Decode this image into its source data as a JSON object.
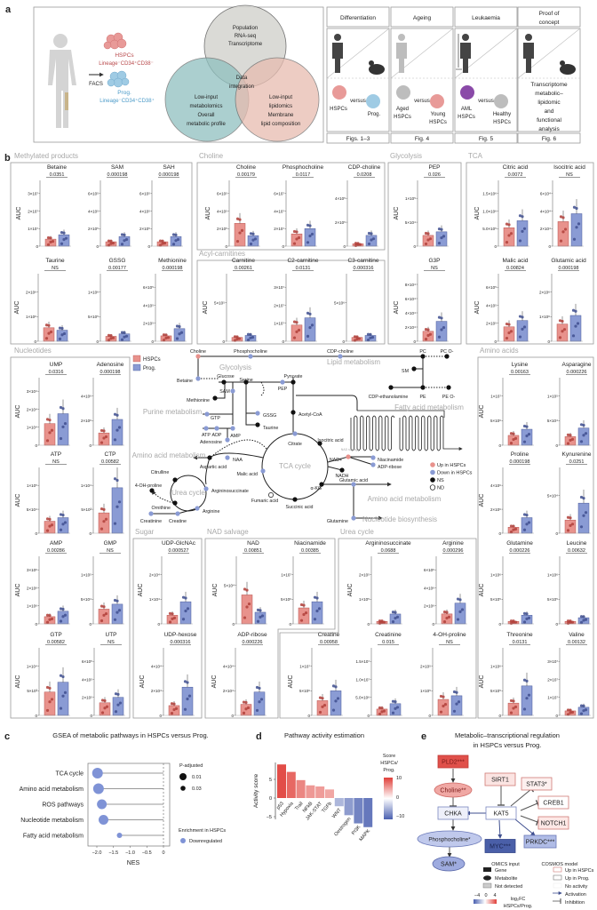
{
  "colors": {
    "hspc": "#e8928c",
    "hspc_dark": "#b0403a",
    "prog": "#8a9bd4",
    "prog_dark": "#3f4f8f",
    "up": "#e06a62",
    "down": "#4a5fa8"
  },
  "panel_a": {
    "label": "a",
    "hspcs": "HSPCs",
    "hspcs_markers": "Lineage⁻CD34⁺CD38⁻",
    "facs": "FACS",
    "prog": "Prog.",
    "prog_markers": "Lineage⁻CD34⁺CD38⁺",
    "venn": {
      "top": [
        "Population",
        "RNA-seq",
        "Transcriptome"
      ],
      "center": [
        "Data",
        "integration"
      ],
      "left": [
        "Low-input",
        "metabolomics",
        "Overall",
        "metabolic profile"
      ],
      "right": [
        "Low-input",
        "lipidomics",
        "Membrane",
        "lipid composition"
      ]
    },
    "columns": [
      {
        "header": [
          "Differentiation"
        ],
        "a": [
          "HSPCs"
        ],
        "versus": "versus",
        "b": [
          "Prog."
        ],
        "footer": "Figs. 1–3"
      },
      {
        "header": [
          "Ageing"
        ],
        "a": [
          "Aged",
          "HSPCs"
        ],
        "versus": "versus",
        "b": [
          "Young",
          "HSPCs"
        ],
        "footer": "Fig. 4"
      },
      {
        "header": [
          "Leukaemia"
        ],
        "a": [
          "AML",
          "HSPCs"
        ],
        "versus": "versus",
        "b": [
          "Healthy",
          "HSPCs"
        ],
        "footer": "Fig. 5"
      },
      {
        "header": [
          "Proof of",
          "concept"
        ],
        "text": [
          "Transcriptome",
          "metabolic–",
          "lipidomic",
          "and",
          "functional",
          "analysis"
        ],
        "footer": "Fig. 6"
      }
    ]
  },
  "panel_b": {
    "label": "b",
    "auc_label": "AUC",
    "legend": {
      "hspcs": "HSPCs",
      "prog": "Prog."
    },
    "groups": [
      "Methylated products",
      "Choline",
      "Acyl-carnitines",
      "Glycolysis",
      "TCA",
      "Nucleotides",
      "Amino acids",
      "Sugar",
      "NAD salvage",
      "Urea cycle"
    ],
    "charts": [
      {
        "title": "Betaine",
        "p": "0.0351",
        "ticks": [
          "0",
          "1×10⁷",
          "2×10⁷",
          "3×10⁷"
        ],
        "hspc": 0.4,
        "prog": 0.65
      },
      {
        "title": "SAM",
        "p": "0.000198",
        "ticks": [
          "0",
          "2×10⁵",
          "4×10⁵",
          "6×10⁵"
        ],
        "hspc": 0.25,
        "prog": 0.55
      },
      {
        "title": "SAH",
        "p": "0.000198",
        "ticks": [
          "0",
          "2×10⁵",
          "4×10⁵",
          "6×10⁵"
        ],
        "hspc": 0.25,
        "prog": 0.55
      },
      {
        "title": "Taurine",
        "p": "NS",
        "ticks": [
          "0",
          "1×10⁶",
          "2×10⁶"
        ],
        "hspc": 0.55,
        "prog": 0.45
      },
      {
        "title": "GSSG",
        "p": "0.00177",
        "ticks": [
          "0",
          "5×10⁵",
          "1×10⁶"
        ],
        "hspc": 0.2,
        "prog": 0.3
      },
      {
        "title": "Methionine",
        "p": "0.000198",
        "ticks": [
          "0",
          "2×10⁵",
          "4×10⁵",
          "6×10⁵"
        ],
        "hspc": 0.3,
        "prog": 0.7
      },
      {
        "title": "Choline",
        "p": "0.00179",
        "ticks": [
          "0",
          "2×10⁵",
          "4×10⁵",
          "6×10⁵"
        ],
        "hspc": 1.3,
        "prog": 0.6
      },
      {
        "title": "Phosphocholine",
        "p": "0.0117",
        "ticks": [
          "0",
          "2×10⁷",
          "4×10⁷",
          "6×10⁷"
        ],
        "hspc": 0.7,
        "prog": 1.0
      },
      {
        "title": "CDP-choline",
        "p": "0.0208",
        "ticks": [
          "0",
          "2×10⁵",
          "4×10⁵"
        ],
        "hspc": 0.1,
        "prog": 0.45
      },
      {
        "title": "Carnitine",
        "p": "0.00261",
        "ticks": [
          "0",
          "5×10⁵"
        ],
        "hspc": 0.1,
        "prog": 0.15
      },
      {
        "title": "C2-carnitine",
        "p": "0.0131",
        "ticks": [
          "0",
          "1×10⁷",
          "2×10⁷",
          "3×10⁷"
        ],
        "hspc": 0.9,
        "prog": 1.3
      },
      {
        "title": "C3-carnitine",
        "p": "0.000316",
        "ticks": [
          "0",
          "5×10⁶"
        ],
        "hspc": 0.1,
        "prog": 0.15
      },
      {
        "title": "PEP",
        "p": "0.026",
        "ticks": [
          "0",
          "5×10⁴",
          "1×10⁵"
        ],
        "hspc": 0.45,
        "prog": 0.6
      },
      {
        "title": "G3P",
        "p": "NS",
        "ticks": [
          "0",
          "2×10⁴",
          "4×10⁴",
          "6×10⁴",
          "8×10⁴"
        ],
        "hspc": 0.7,
        "prog": 1.4
      },
      {
        "title": "Citric acid",
        "p": "0.0072",
        "ticks": [
          "0",
          "5.0×10⁵",
          "1.0×10⁶",
          "1.5×10⁶"
        ],
        "hspc": 1.05,
        "prog": 1.45
      },
      {
        "title": "Isocitric acid",
        "p": "NS",
        "ticks": [
          "0",
          "2×10⁴",
          "4×10⁴",
          "6×10⁴"
        ],
        "hspc": 1.4,
        "prog": 1.85
      },
      {
        "title": "Malic acid",
        "p": "0.00824",
        "ticks": [
          "0",
          "2×10⁵",
          "4×10⁵",
          "6×10⁵"
        ],
        "hspc": 0.8,
        "prog": 1.15
      },
      {
        "title": "Glutamic acid",
        "p": "0.000198",
        "ticks": [
          "0",
          "1×10⁶",
          "2×10⁶"
        ],
        "hspc": 0.7,
        "prog": 1.05
      },
      {
        "title": "UMP",
        "p": "0.0316",
        "ticks": [
          "0",
          "1×10⁴",
          "2×10⁴",
          "3×10⁴"
        ],
        "hspc": 1.2,
        "prog": 1.75
      },
      {
        "title": "Adenosine",
        "p": "0.000198",
        "ticks": [
          "0",
          "2×10⁶",
          "4×10⁶"
        ],
        "hspc": 0.5,
        "prog": 1.05
      },
      {
        "title": "ATP",
        "p": "NS",
        "ticks": [
          "0",
          "5×10⁴",
          "1×10⁵"
        ],
        "hspc": 0.5,
        "prog": 0.65
      },
      {
        "title": "CTP",
        "p": "0.00582",
        "ticks": [
          "0",
          "5×10³",
          "1×10⁴"
        ],
        "hspc": 0.85,
        "prog": 1.9
      },
      {
        "title": "AMP",
        "p": "0.00286",
        "ticks": [
          "0",
          "1×10⁶",
          "2×10⁶",
          "3×10⁶"
        ],
        "hspc": 0.4,
        "prog": 0.7
      },
      {
        "title": "GMP",
        "p": "NS",
        "ticks": [
          "0",
          "5×10⁴",
          "1×10⁵"
        ],
        "hspc": 0.6,
        "prog": 0.8
      },
      {
        "title": "GTP",
        "p": "0.00582",
        "ticks": [
          "0",
          "5×10³",
          "1×10⁴"
        ],
        "hspc": 0.95,
        "prog": 1.35
      },
      {
        "title": "UTP",
        "p": "NS",
        "ticks": [
          "0",
          "2×10⁵",
          "4×10⁵",
          "6×10⁵"
        ],
        "hspc": 0.7,
        "prog": 1.0
      },
      {
        "title": "UDP-GlcNAc",
        "p": "0.000527",
        "ticks": [
          "0",
          "1×10⁴",
          "2×10⁴"
        ],
        "hspc": 0.35,
        "prog": 0.9
      },
      {
        "title": "UDP-hexose",
        "p": "0.000316",
        "ticks": [
          "0",
          "2×10⁴",
          "4×10⁴"
        ],
        "hspc": 0.4,
        "prog": 1.15
      },
      {
        "title": "NAD",
        "p": "0.00851",
        "ticks": [
          "0",
          "5×10⁴"
        ],
        "hspc": 0.75,
        "prog": 0.3
      },
      {
        "title": "Niacinamide",
        "p": "0.00385",
        "ticks": [
          "0",
          "5×10⁶",
          "1×10⁷"
        ],
        "hspc": 0.65,
        "prog": 0.9
      },
      {
        "title": "ADP-ribose",
        "p": "0.000226",
        "ticks": [
          "0",
          "2×10⁴",
          "4×10⁴"
        ],
        "hspc": 0.45,
        "prog": 0.95
      },
      {
        "title": "Argininosuccinate",
        "p": "0.0688",
        "ticks": [
          "0",
          "1×10⁵",
          "2×10⁵"
        ],
        "hspc": 0.1,
        "prog": 0.4
      },
      {
        "title": "Arginine",
        "p": "0.000296",
        "ticks": [
          "0",
          "2×10⁶",
          "4×10⁶",
          "6×10⁶"
        ],
        "hspc": 0.55,
        "prog": 1.15
      },
      {
        "title": "Creatine",
        "p": "0.00958",
        "ticks": [
          "0",
          "5×10⁶",
          "1×10⁷"
        ],
        "hspc": 0.6,
        "prog": 1.0
      },
      {
        "title": "Creatinine",
        "p": "0.015",
        "ticks": [
          "0",
          "5.0×10⁶",
          "1.0×10⁷",
          "1.5×10⁷"
        ],
        "hspc": 0.35,
        "prog": 0.65
      },
      {
        "title": "4-OH-proline",
        "p": "NS",
        "ticks": [
          "0",
          "1×10⁵",
          "2×10⁵"
        ],
        "hspc": 0.65,
        "prog": 0.8
      },
      {
        "title": "Lysine",
        "p": "0.00163",
        "ticks": [
          "0",
          "5×10⁶",
          "1×10⁷"
        ],
        "hspc": 0.4,
        "prog": 0.65
      },
      {
        "title": "Asparagine",
        "p": "0.000226",
        "ticks": [
          "0",
          "5×10⁴",
          "1×10⁵"
        ],
        "hspc": 0.35,
        "prog": 0.7
      },
      {
        "title": "Proline",
        "p": "0.000198",
        "ticks": [
          "0",
          "2×10⁶",
          "4×10⁶"
        ],
        "hspc": 0.25,
        "prog": 0.65
      },
      {
        "title": "Kynurenine",
        "p": "0.0251",
        "ticks": [
          "0",
          "5×10⁴"
        ],
        "hspc": 0.35,
        "prog": 0.8
      },
      {
        "title": "Glutamine",
        "p": "0.000226",
        "ticks": [
          "0",
          "5×10⁵",
          "1×10⁶"
        ],
        "hspc": 0.1,
        "prog": 0.35
      },
      {
        "title": "Leucine",
        "p": "0.00632",
        "ticks": [
          "0",
          "5×10⁵",
          "1×10⁶"
        ],
        "hspc": 0.1,
        "prog": 0.25
      },
      {
        "title": "Threonine",
        "p": "0.0131",
        "ticks": [
          "0",
          "5×10⁵",
          "1×10⁶"
        ],
        "hspc": 0.5,
        "prog": 1.2
      },
      {
        "title": "Valine",
        "p": "0.00132",
        "ticks": [
          "0",
          "1×10⁷",
          "2×10⁷",
          "3×10⁷"
        ],
        "hspc": 0.25,
        "prog": 0.45
      }
    ],
    "map": {
      "metabolites": [
        "Choline",
        "Phosphocholine",
        "CDP-choline",
        "PC",
        "PC O-",
        "SM",
        "Betaine",
        "Glucose",
        "Pyruvate",
        "CDP-ethanolamine",
        "PE",
        "PE O-",
        "SAM",
        "Serine",
        "PEP",
        "Methionine",
        "GTP",
        "GSSG",
        "Acetyl-CoA",
        "ATP",
        "ADP",
        "AMP",
        "Taurine",
        "Adenosine",
        "Citrate",
        "Isocitric acid",
        "NAA",
        "Aspartic acid",
        "NAD+",
        "Niacinamide",
        "ADP-ribose",
        "NADH",
        "Malic acid",
        "Citrulline",
        "Argininosuccinate",
        "α-KG",
        "Glutamic acid",
        "4-OH-proline",
        "Fumaric acid",
        "Succinic acid",
        "Ornithine",
        "Arginine",
        "Creatinine",
        "Creatine",
        "Glutamine"
      ],
      "pathways": [
        "Glycolysis",
        "Lipid metabolism",
        "Fatty acid metabolism",
        "Purine metabolism",
        "Amino acid metabolism",
        "TCA cycle",
        "NAD salvage",
        "Urea cycle",
        "Amino acid metabolism",
        "Nucleotide biosynthesis"
      ],
      "legend": [
        "Up in HSPCs",
        "Down in HSPCs",
        "NS",
        "ND"
      ]
    }
  },
  "chart_data": [
    {
      "type": "scatter",
      "label": "c",
      "title": "GSEA of metabolic pathways in HSPCs versus Prog.",
      "categories": [
        "TCA cycle",
        "Amino acid metabolism",
        "ROS pathways",
        "Nucleotide metabolism",
        "Fatty acid metabolism"
      ],
      "nes": [
        -1.98,
        -1.95,
        -1.85,
        -1.8,
        -1.32
      ],
      "p_adjusted": [
        0.01,
        0.01,
        0.015,
        0.015,
        0.035
      ],
      "xlabel": "NES",
      "xlim": [
        -2.2,
        0.1
      ],
      "xticks": [
        "−2.0",
        "−1.5",
        "−1.0",
        "−0.5",
        "0"
      ],
      "legend_size_title": "P-adjusted",
      "legend_size": [
        "0.01",
        "0.03"
      ],
      "legend_color_title": "Enrichment in HSPCs",
      "legend_color": "Downregulated"
    },
    {
      "type": "bar",
      "label": "d",
      "title": "Pathway activity estimation",
      "categories": [
        "p53",
        "Hypoxia",
        "Trail",
        "NFkB",
        "JAK-STAT",
        "TGFb",
        "WNT",
        "Oestrogen",
        "PI3K",
        "MAPK"
      ],
      "values": [
        9.0,
        7.0,
        4.8,
        3.4,
        3.1,
        2.3,
        -2.2,
        -4.6,
        -6.8,
        -7.8
      ],
      "ylabel": "Activity score",
      "ylim": [
        -9,
        10
      ],
      "yticks": [
        "5",
        "0",
        "−5"
      ],
      "colorbar_title": [
        "Score",
        "HSPCs/",
        "Prog."
      ],
      "colorbar_ticks": [
        "10",
        "0",
        "−10"
      ]
    }
  ],
  "panel_e": {
    "label": "e",
    "title": [
      "Metabolic–transcriptional regulation",
      "in HSPCs versus Prog."
    ],
    "nodes": {
      "pld2": "PLD2***",
      "choline": "Choline**",
      "chka": "CHKA",
      "phosphocholine": "Phosphocholine*",
      "sam": "SAM*",
      "sirt1": "SIRT1",
      "stat3": "STAT3*",
      "kat5": "KAT5",
      "creb1": "CREB1",
      "notch1": "NOTCH1",
      "myc": "MYC***",
      "prkdc": "PRKDC***"
    },
    "omics_legend": {
      "title": "OMICS input",
      "items": [
        "Gene",
        "Metabolite",
        "Not detected"
      ],
      "scale": [
        "−4",
        "0",
        "4"
      ],
      "scale_label": [
        "log₂FC",
        "HSPCs/Prog."
      ]
    },
    "cosmos_legend": {
      "title": "COSMOS model",
      "items": [
        "Up in HSPCs",
        "Up in Prog.",
        "No activity",
        "Activation",
        "Inhibition"
      ]
    }
  }
}
